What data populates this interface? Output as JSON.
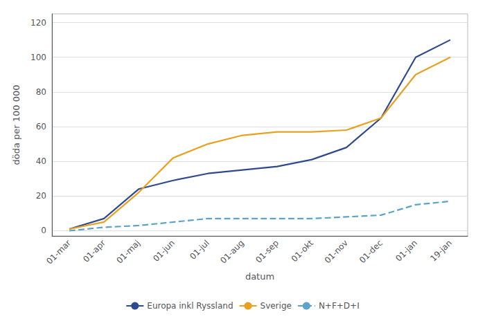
{
  "chart_data": {
    "type": "line",
    "xlabel": "datum",
    "ylabel": "döda per 100 000",
    "categories": [
      "01-mar",
      "01-apr",
      "01-maj",
      "01-jun",
      "01-jul",
      "01-aug",
      "01-sep",
      "01-okt",
      "01-nov",
      "01-dec",
      "01-jan",
      "19-jan"
    ],
    "series": [
      {
        "name": "Europa inkl Ryssland",
        "color": "#2E4A8E",
        "line_style": "solid",
        "values": [
          1,
          7,
          24,
          29,
          33,
          35,
          37,
          41,
          48,
          65,
          100,
          110
        ]
      },
      {
        "name": "Sverige",
        "color": "#E8A020",
        "line_style": "solid",
        "values": [
          1,
          5,
          22,
          42,
          50,
          55,
          57,
          57,
          58,
          65,
          90,
          100
        ]
      },
      {
        "name": "N+F+D+I",
        "color": "#5BA3C9",
        "line_style": "dashed",
        "values": [
          0,
          2,
          3,
          5,
          7,
          7,
          7,
          7,
          8,
          9,
          15,
          17
        ]
      }
    ],
    "ylim": [
      -3,
      125
    ],
    "yticks": [
      0,
      20,
      40,
      60,
      80,
      100,
      120
    ],
    "grid": true,
    "legend": "bottom"
  }
}
